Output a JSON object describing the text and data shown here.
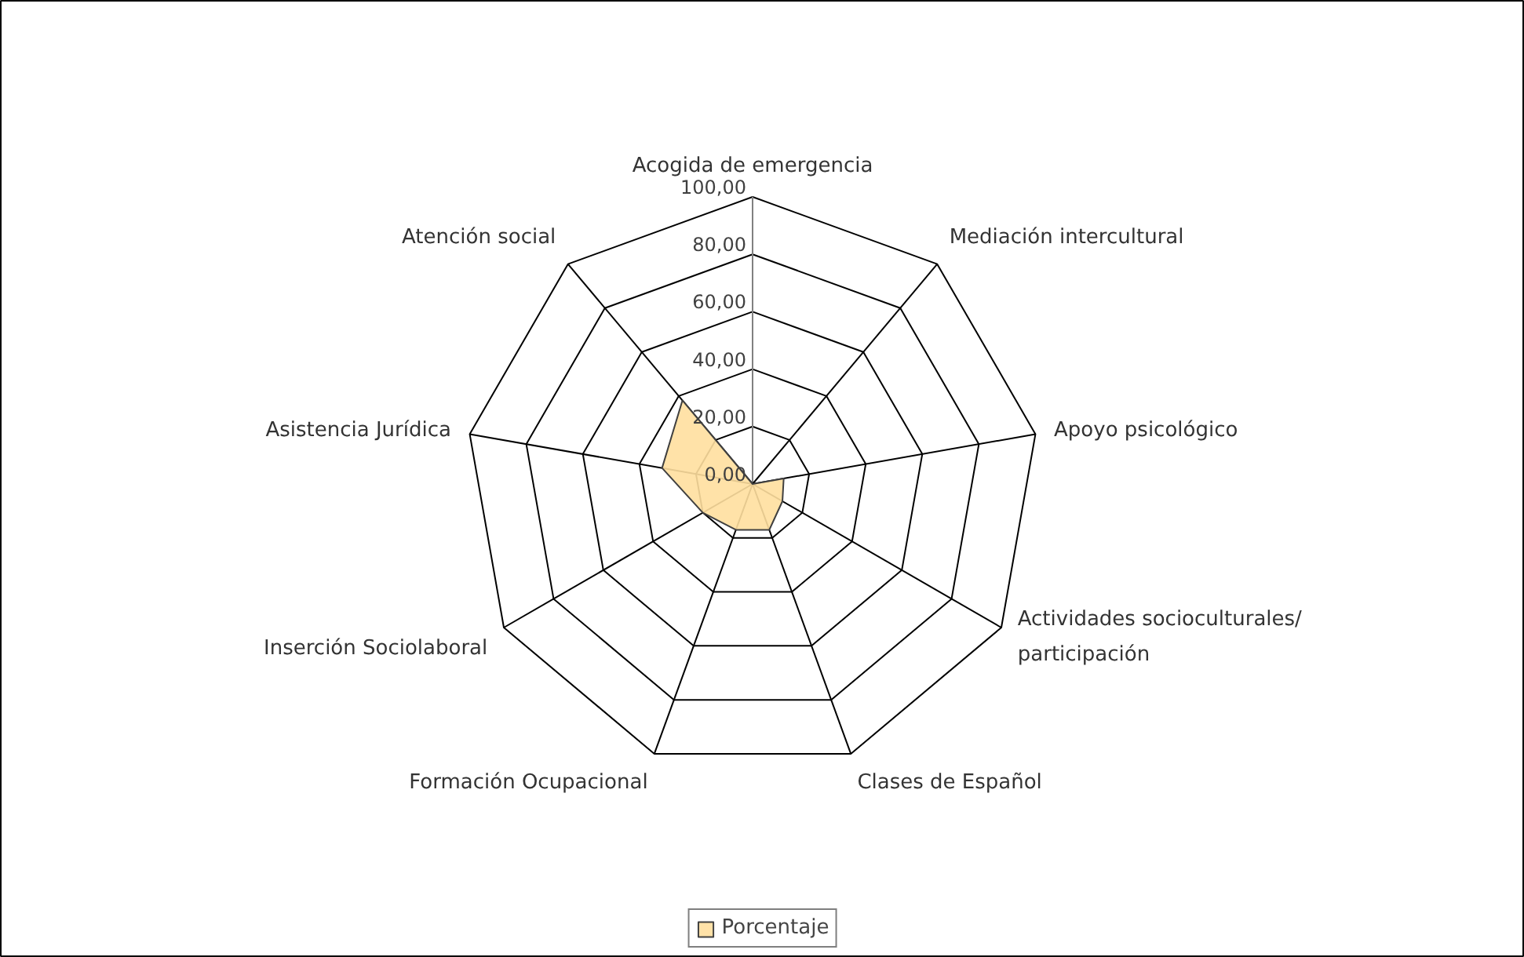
{
  "chart_data": {
    "type": "radar",
    "categories": [
      "Acogida de emergencia",
      "Mediación intercultural",
      "Apoyo psicológico",
      "Actividades socioculturales/\nparticipación",
      "Clases de Español",
      "Formación Ocupacional",
      "Inserción Sociolaboral",
      "Asistencia Jurídica",
      "Atención social"
    ],
    "series": [
      {
        "name": "Porcentaje",
        "color": "#ffdf9f",
        "values": [
          0,
          0,
          11,
          12,
          17,
          17,
          20,
          32,
          38
        ]
      }
    ],
    "ylim": [
      0,
      100
    ],
    "yticks": [
      {
        "value": 0,
        "label": "0,00"
      },
      {
        "value": 20,
        "label": "20,00"
      },
      {
        "value": 40,
        "label": "40,00"
      },
      {
        "value": 60,
        "label": "60,00"
      },
      {
        "value": 80,
        "label": "80,00"
      },
      {
        "value": 100,
        "label": "100,00"
      }
    ],
    "legend": "bottom"
  }
}
